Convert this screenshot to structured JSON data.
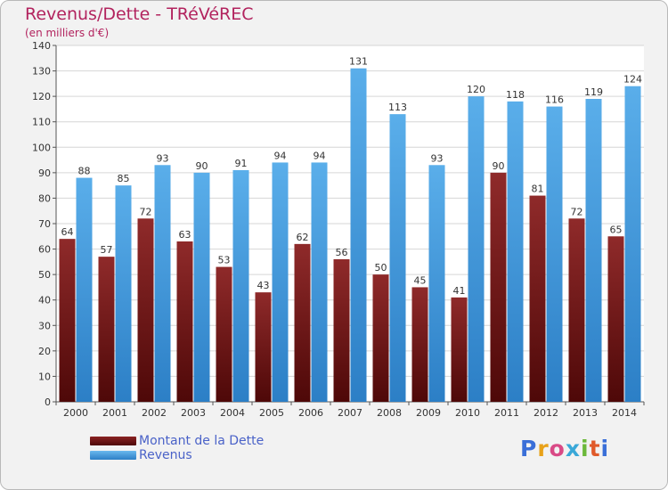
{
  "header": {
    "title": "Revenus/Dette - TRéVéREC",
    "subtitle": "(en milliers d'€)"
  },
  "colors": {
    "title": "#b2235e",
    "debt_bar": "#7a1c1c",
    "revenue_bar": "#4fa5e4",
    "legend_text": "#4a62c8",
    "background": "#f2f2f2"
  },
  "chart_data": {
    "type": "bar",
    "categories": [
      "2000",
      "2001",
      "2002",
      "2003",
      "2004",
      "2005",
      "2006",
      "2007",
      "2008",
      "2009",
      "2010",
      "2011",
      "2012",
      "2013",
      "2014"
    ],
    "series": [
      {
        "name": "Montant de la Dette",
        "values": [
          64,
          57,
          72,
          63,
          53,
          43,
          62,
          56,
          50,
          45,
          41,
          90,
          81,
          72,
          65
        ]
      },
      {
        "name": "Revenus",
        "values": [
          88,
          85,
          93,
          90,
          91,
          94,
          94,
          131,
          113,
          93,
          120,
          118,
          116,
          119,
          124
        ]
      }
    ],
    "ylim": [
      0,
      140
    ],
    "yticks": [
      "0",
      "10",
      "20",
      "30",
      "40",
      "50",
      "60",
      "70",
      "80",
      "90",
      "100",
      "110",
      "120",
      "130",
      "140"
    ],
    "grid": true,
    "legend_position": "bottom-left"
  },
  "legend": {
    "items": [
      {
        "label": "Montant de la Dette"
      },
      {
        "label": "Revenus"
      }
    ]
  },
  "logo": {
    "text": "Proxiti"
  }
}
